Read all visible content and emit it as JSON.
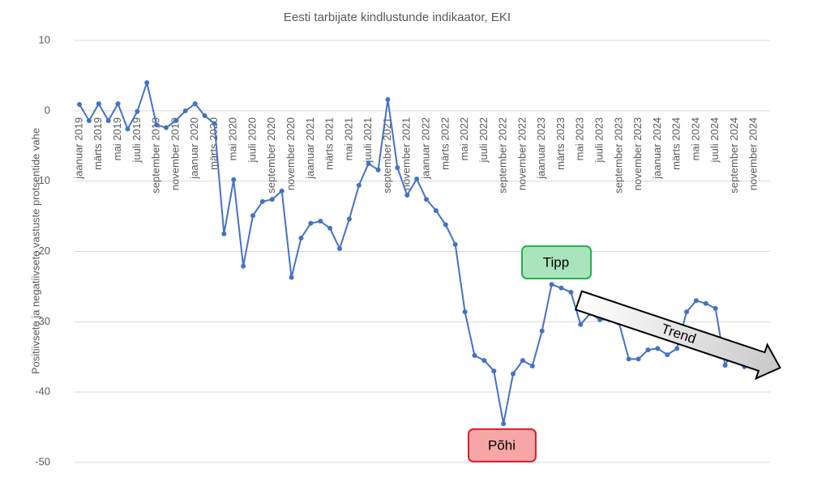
{
  "chart_data": {
    "type": "line",
    "title": "Eesti tarbijate kindlustunde indikaator, EKI",
    "y_label": "Positiivsete ja negatiivsete vastuste protsentide vahe",
    "categories": [
      "jaanuar 2019",
      null,
      "märts 2019",
      null,
      "mai 2019",
      null,
      "juuli 2019",
      null,
      "september 2019",
      null,
      "november 2019",
      null,
      "jaanuar 2020",
      null,
      "märts 2020",
      null,
      "mai 2020",
      null,
      "juuli 2020",
      null,
      "september 2020",
      null,
      "november 2020",
      null,
      "jaanuar 2021",
      null,
      "märts 2021",
      null,
      "mai 2021",
      null,
      "juuli 2021",
      null,
      "september 2021",
      null,
      "november 2021",
      null,
      "jaanuar 2022",
      null,
      "märts 2022",
      null,
      "mai 2022",
      null,
      "juuli 2022",
      null,
      "september 2022",
      null,
      "november 2022",
      null,
      "jaanuar 2023",
      null,
      "märts 2023",
      null,
      "mai 2023",
      null,
      "juuli 2023",
      null,
      "september 2023",
      null,
      "november 2023",
      null,
      "jaanuar 2024",
      null,
      "märts 2024",
      null,
      "mai 2024",
      null,
      "juuli 2024",
      null,
      "september 2024",
      null,
      "november 2024",
      null
    ],
    "series": [
      {
        "name": "EKI",
        "color": "#4472c4",
        "values": [
          0.9,
          -1.4,
          1.0,
          -1.4,
          1.0,
          -2.6,
          -0.1,
          4.0,
          -2.0,
          -2.4,
          -1.4,
          0,
          1.0,
          -0.7,
          -1.8,
          -17.5,
          -9.8,
          -22.1,
          -14.9,
          -12.9,
          -12.6,
          -11.4,
          -23.7,
          -18.1,
          -16.0,
          -15.7,
          -16.7,
          -19.6,
          -15.4,
          -10.6,
          -7.5,
          -8.4,
          1.6,
          -8.1,
          -12.0,
          -9.7,
          -12.6,
          -14.2,
          -16.2,
          -19.0,
          -28.6,
          -34.8,
          -35.5,
          -37.0,
          -44.5,
          -37.4,
          -35.5,
          -36.3,
          -31.3,
          -24.7,
          -25.2,
          -25.8,
          -30.4,
          -28.8,
          -29.7,
          -29.7,
          -30.2,
          -35.3,
          -35.3,
          -34.0,
          -33.8,
          -34.7,
          -33.8,
          -28.6,
          -27.0,
          -27.4,
          -28.1,
          -36.2,
          -33.6,
          -36.4,
          -34.5,
          -36.9
        ]
      }
    ],
    "ylim": [
      -50,
      10
    ],
    "yticks": [
      10,
      0,
      -10,
      -20,
      -30,
      -40,
      -50
    ],
    "grid": true,
    "annotations": [
      "Tipp",
      "Põhi",
      "Trend"
    ]
  }
}
